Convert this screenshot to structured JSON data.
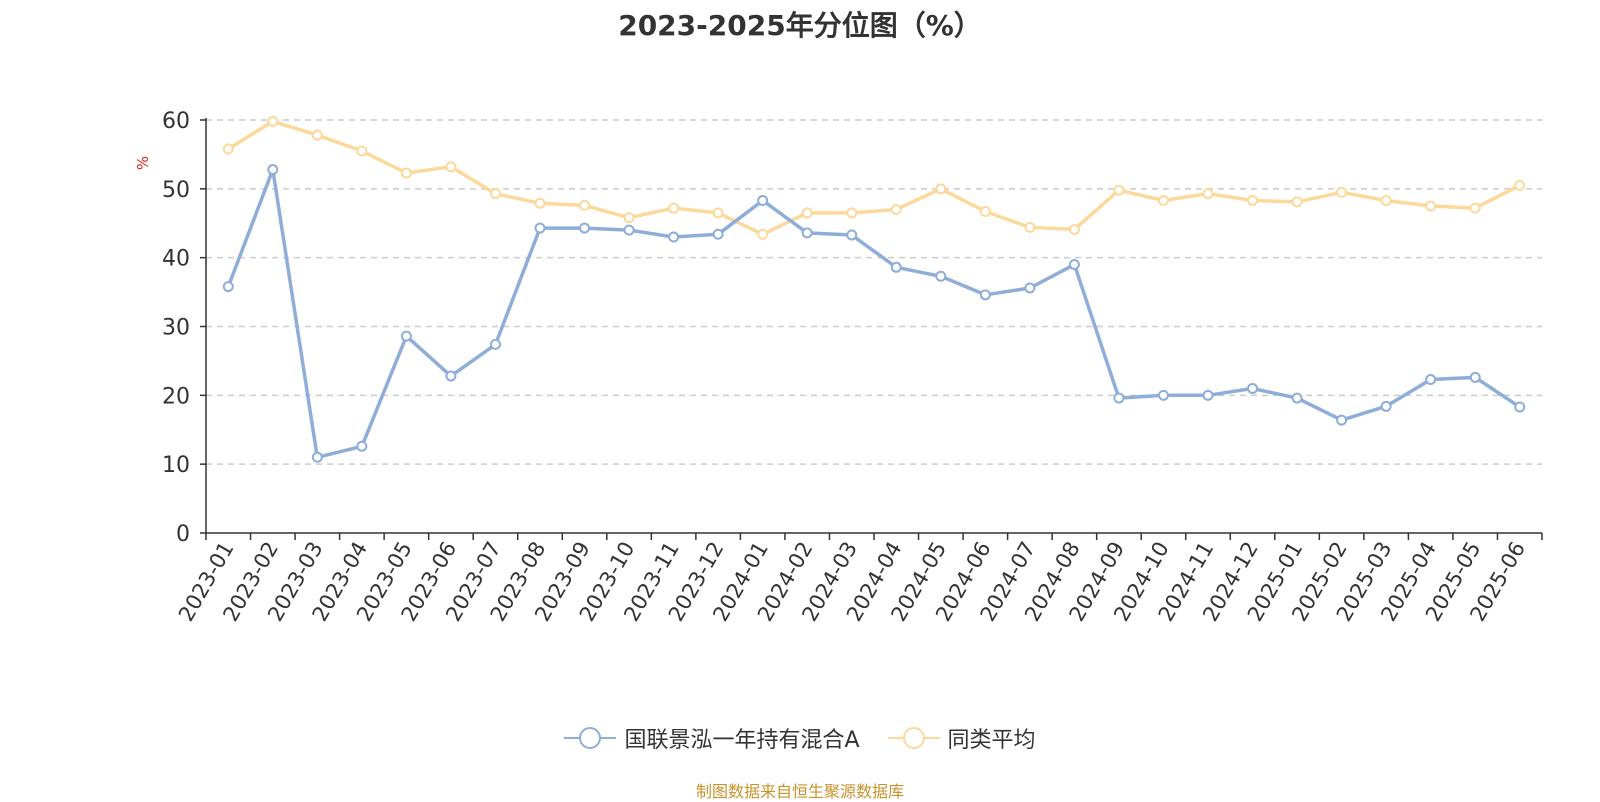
{
  "chart_data": {
    "type": "line",
    "title": "2023-2025年分位图（%）",
    "ylabel": "%",
    "ylim": [
      0,
      60
    ],
    "yticks": [
      0,
      10,
      20,
      30,
      40,
      50,
      60
    ],
    "grid": "dashed horizontal",
    "legend_position": "bottom-center",
    "categories": [
      "2023-01",
      "2023-02",
      "2023-03",
      "2023-04",
      "2023-05",
      "2023-06",
      "2023-07",
      "2023-08",
      "2023-09",
      "2023-10",
      "2023-11",
      "2023-12",
      "2024-01",
      "2024-02",
      "2024-03",
      "2024-04",
      "2024-05",
      "2024-06",
      "2024-07",
      "2024-08",
      "2024-09",
      "2024-10",
      "2024-11",
      "2024-12",
      "2025-01",
      "2025-02",
      "2025-03",
      "2025-04",
      "2025-05",
      "2025-06"
    ],
    "series": [
      {
        "name": "国联景泓一年持有混合A",
        "color": "#8eadd9",
        "values": [
          35.8,
          52.8,
          11.0,
          12.6,
          28.6,
          22.8,
          27.4,
          44.3,
          44.3,
          44.0,
          43.0,
          43.4,
          48.3,
          43.6,
          43.3,
          38.6,
          37.3,
          34.6,
          35.6,
          39.0,
          19.6,
          20.0,
          20.0,
          21.0,
          19.6,
          16.4,
          18.4,
          22.3,
          22.6,
          18.3
        ]
      },
      {
        "name": "同类平均",
        "color": "#fcd99a",
        "values": [
          55.8,
          59.8,
          57.8,
          55.5,
          52.3,
          53.2,
          49.3,
          47.9,
          47.6,
          45.8,
          47.2,
          46.5,
          43.4,
          46.5,
          46.5,
          47.0,
          50.0,
          46.7,
          44.4,
          44.1,
          49.8,
          48.3,
          49.3,
          48.3,
          48.1,
          49.5,
          48.3,
          47.5,
          47.2,
          50.5
        ]
      }
    ]
  },
  "footer": {
    "source_text": "制图数据来自恒生聚源数据库"
  }
}
